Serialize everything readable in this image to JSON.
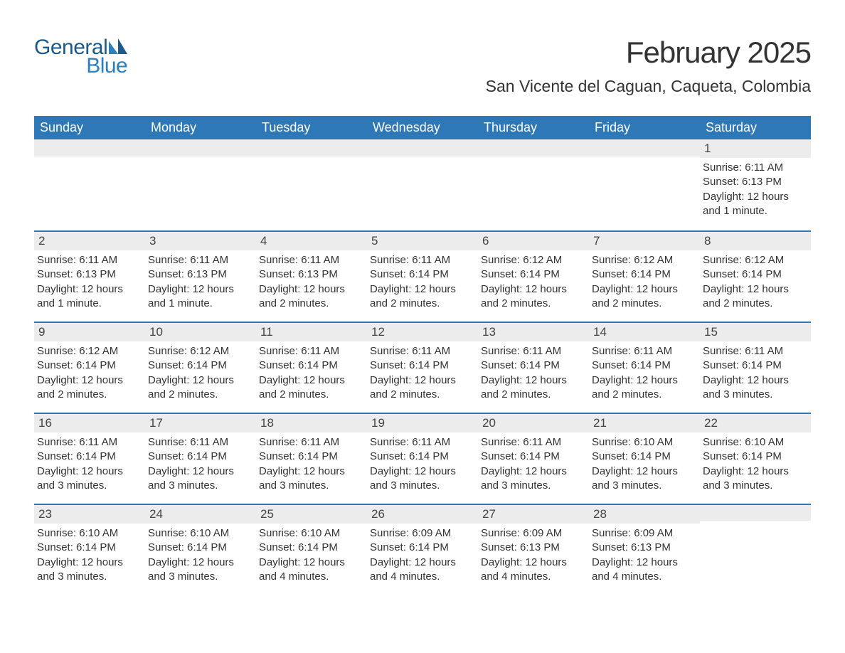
{
  "logo": {
    "general": "General",
    "blue": "Blue"
  },
  "header": {
    "month_title": "February 2025",
    "location": "San Vicente del Caguan, Caqueta, Colombia"
  },
  "colors": {
    "header_bg": "#2f78b7",
    "header_text": "#ffffff",
    "daynum_bg": "#ececec",
    "row_border": "#2f78b7",
    "body_text": "#333333",
    "logo_primary": "#1c5a8c",
    "logo_accent": "#2a7fbe",
    "page_bg": "#ffffff"
  },
  "typography": {
    "month_title_fontsize": 42,
    "location_fontsize": 23,
    "weekday_fontsize": 18,
    "daynum_fontsize": 17,
    "content_fontsize": 15
  },
  "weekdays": [
    "Sunday",
    "Monday",
    "Tuesday",
    "Wednesday",
    "Thursday",
    "Friday",
    "Saturday"
  ],
  "weeks": [
    [
      {
        "day": "",
        "sunrise": "",
        "sunset": "",
        "daylight": ""
      },
      {
        "day": "",
        "sunrise": "",
        "sunset": "",
        "daylight": ""
      },
      {
        "day": "",
        "sunrise": "",
        "sunset": "",
        "daylight": ""
      },
      {
        "day": "",
        "sunrise": "",
        "sunset": "",
        "daylight": ""
      },
      {
        "day": "",
        "sunrise": "",
        "sunset": "",
        "daylight": ""
      },
      {
        "day": "",
        "sunrise": "",
        "sunset": "",
        "daylight": ""
      },
      {
        "day": "1",
        "sunrise": "Sunrise: 6:11 AM",
        "sunset": "Sunset: 6:13 PM",
        "daylight": "Daylight: 12 hours and 1 minute."
      }
    ],
    [
      {
        "day": "2",
        "sunrise": "Sunrise: 6:11 AM",
        "sunset": "Sunset: 6:13 PM",
        "daylight": "Daylight: 12 hours and 1 minute."
      },
      {
        "day": "3",
        "sunrise": "Sunrise: 6:11 AM",
        "sunset": "Sunset: 6:13 PM",
        "daylight": "Daylight: 12 hours and 1 minute."
      },
      {
        "day": "4",
        "sunrise": "Sunrise: 6:11 AM",
        "sunset": "Sunset: 6:13 PM",
        "daylight": "Daylight: 12 hours and 2 minutes."
      },
      {
        "day": "5",
        "sunrise": "Sunrise: 6:11 AM",
        "sunset": "Sunset: 6:14 PM",
        "daylight": "Daylight: 12 hours and 2 minutes."
      },
      {
        "day": "6",
        "sunrise": "Sunrise: 6:12 AM",
        "sunset": "Sunset: 6:14 PM",
        "daylight": "Daylight: 12 hours and 2 minutes."
      },
      {
        "day": "7",
        "sunrise": "Sunrise: 6:12 AM",
        "sunset": "Sunset: 6:14 PM",
        "daylight": "Daylight: 12 hours and 2 minutes."
      },
      {
        "day": "8",
        "sunrise": "Sunrise: 6:12 AM",
        "sunset": "Sunset: 6:14 PM",
        "daylight": "Daylight: 12 hours and 2 minutes."
      }
    ],
    [
      {
        "day": "9",
        "sunrise": "Sunrise: 6:12 AM",
        "sunset": "Sunset: 6:14 PM",
        "daylight": "Daylight: 12 hours and 2 minutes."
      },
      {
        "day": "10",
        "sunrise": "Sunrise: 6:12 AM",
        "sunset": "Sunset: 6:14 PM",
        "daylight": "Daylight: 12 hours and 2 minutes."
      },
      {
        "day": "11",
        "sunrise": "Sunrise: 6:11 AM",
        "sunset": "Sunset: 6:14 PM",
        "daylight": "Daylight: 12 hours and 2 minutes."
      },
      {
        "day": "12",
        "sunrise": "Sunrise: 6:11 AM",
        "sunset": "Sunset: 6:14 PM",
        "daylight": "Daylight: 12 hours and 2 minutes."
      },
      {
        "day": "13",
        "sunrise": "Sunrise: 6:11 AM",
        "sunset": "Sunset: 6:14 PM",
        "daylight": "Daylight: 12 hours and 2 minutes."
      },
      {
        "day": "14",
        "sunrise": "Sunrise: 6:11 AM",
        "sunset": "Sunset: 6:14 PM",
        "daylight": "Daylight: 12 hours and 2 minutes."
      },
      {
        "day": "15",
        "sunrise": "Sunrise: 6:11 AM",
        "sunset": "Sunset: 6:14 PM",
        "daylight": "Daylight: 12 hours and 3 minutes."
      }
    ],
    [
      {
        "day": "16",
        "sunrise": "Sunrise: 6:11 AM",
        "sunset": "Sunset: 6:14 PM",
        "daylight": "Daylight: 12 hours and 3 minutes."
      },
      {
        "day": "17",
        "sunrise": "Sunrise: 6:11 AM",
        "sunset": "Sunset: 6:14 PM",
        "daylight": "Daylight: 12 hours and 3 minutes."
      },
      {
        "day": "18",
        "sunrise": "Sunrise: 6:11 AM",
        "sunset": "Sunset: 6:14 PM",
        "daylight": "Daylight: 12 hours and 3 minutes."
      },
      {
        "day": "19",
        "sunrise": "Sunrise: 6:11 AM",
        "sunset": "Sunset: 6:14 PM",
        "daylight": "Daylight: 12 hours and 3 minutes."
      },
      {
        "day": "20",
        "sunrise": "Sunrise: 6:11 AM",
        "sunset": "Sunset: 6:14 PM",
        "daylight": "Daylight: 12 hours and 3 minutes."
      },
      {
        "day": "21",
        "sunrise": "Sunrise: 6:10 AM",
        "sunset": "Sunset: 6:14 PM",
        "daylight": "Daylight: 12 hours and 3 minutes."
      },
      {
        "day": "22",
        "sunrise": "Sunrise: 6:10 AM",
        "sunset": "Sunset: 6:14 PM",
        "daylight": "Daylight: 12 hours and 3 minutes."
      }
    ],
    [
      {
        "day": "23",
        "sunrise": "Sunrise: 6:10 AM",
        "sunset": "Sunset: 6:14 PM",
        "daylight": "Daylight: 12 hours and 3 minutes."
      },
      {
        "day": "24",
        "sunrise": "Sunrise: 6:10 AM",
        "sunset": "Sunset: 6:14 PM",
        "daylight": "Daylight: 12 hours and 3 minutes."
      },
      {
        "day": "25",
        "sunrise": "Sunrise: 6:10 AM",
        "sunset": "Sunset: 6:14 PM",
        "daylight": "Daylight: 12 hours and 4 minutes."
      },
      {
        "day": "26",
        "sunrise": "Sunrise: 6:09 AM",
        "sunset": "Sunset: 6:14 PM",
        "daylight": "Daylight: 12 hours and 4 minutes."
      },
      {
        "day": "27",
        "sunrise": "Sunrise: 6:09 AM",
        "sunset": "Sunset: 6:13 PM",
        "daylight": "Daylight: 12 hours and 4 minutes."
      },
      {
        "day": "28",
        "sunrise": "Sunrise: 6:09 AM",
        "sunset": "Sunset: 6:13 PM",
        "daylight": "Daylight: 12 hours and 4 minutes."
      },
      {
        "day": "",
        "sunrise": "",
        "sunset": "",
        "daylight": ""
      }
    ]
  ]
}
